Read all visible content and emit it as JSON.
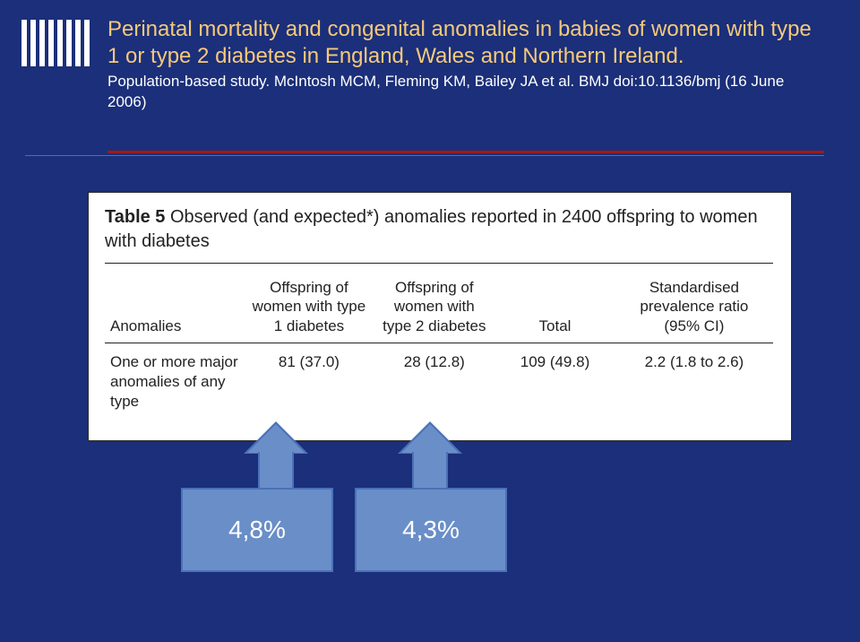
{
  "title": "Perinatal mortality and congenital anomalies in babies of women with type 1 or type 2 diabetes in England, Wales and Northern Ireland.",
  "subtitle": "Population-based study. McIntosh MCM, Fleming KM, Bailey JA et al. BMJ doi:10.1136/bmj (16 June 2006)",
  "table": {
    "caption_strong": "Table 5",
    "caption_rest": " Observed (and expected*) anomalies reported in 2400 offspring to women with diabetes",
    "headers": {
      "anomalies": "Anomalies",
      "col_a": "Offspring of women with type 1 diabetes",
      "col_b": "Offspring of women with type 2 diabetes",
      "total": "Total",
      "ratio": "Standardised prevalence ratio (95% CI)"
    },
    "row": {
      "label": "One or more major anomalies of any type",
      "a": "81 (37.0)",
      "b": "28 (12.8)",
      "total": "109 (49.8)",
      "ratio": "2.2 (1.8 to 2.6)"
    }
  },
  "callouts": {
    "left": "4,8%",
    "right": "4,3%"
  },
  "colors": {
    "background": "#1b2f7a",
    "title": "#f6c97a",
    "subtitle": "#ffffff",
    "rule": "#9c1a1a",
    "arrow_fill": "#6a8ec7",
    "arrow_border": "#4a71b8"
  }
}
